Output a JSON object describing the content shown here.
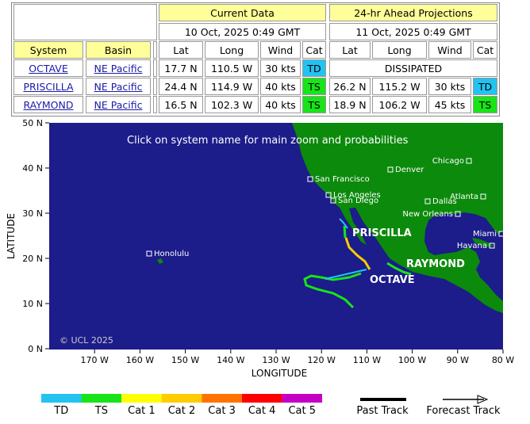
{
  "table": {
    "current_title": "Current Data",
    "ahead_title": "24-hr Ahead Projections",
    "current_time": "10 Oct, 2025 0:49 GMT",
    "ahead_time": "11 Oct, 2025 0:49 GMT",
    "columns": [
      "System",
      "Basin",
      "Lat",
      "Long",
      "Wind",
      "Cat",
      "Lat",
      "Long",
      "Wind",
      "Cat"
    ],
    "rows": [
      [
        "OCTAVE",
        "NE Pacific",
        "17.7 N",
        "110.5 W",
        "30 kts",
        "TD",
        "DISSIPATED"
      ],
      [
        "PRISCILLA",
        "NE Pacific",
        "24.4 N",
        "114.9 W",
        "40 kts",
        "TS",
        "26.2 N",
        "115.2 W",
        "30 kts",
        "TD"
      ],
      [
        "RAYMOND",
        "NE Pacific",
        "16.5 N",
        "102.3 W",
        "40 kts",
        "TS",
        "18.9 N",
        "106.2 W",
        "45 kts",
        "TS"
      ]
    ]
  },
  "map": {
    "note": "Click on system name for main zoom and probabilities",
    "copyright": "© UCL 2025",
    "xlabel": "LONGITUDE",
    "ylabel": "LATITUDE",
    "yticks": [
      "50 N",
      "40 N",
      "30 N",
      "20 N",
      "10 N",
      "0 N"
    ],
    "xticks": [
      "170 W",
      "160 W",
      "150 W",
      "140 W",
      "130 W",
      "120 W",
      "110 W",
      "100 W",
      "90 W",
      "80 W"
    ],
    "cities": [
      "San Francisco",
      "Denver",
      "Chicago",
      "Los Angeles",
      "San Diego",
      "Atlanta",
      "Dallas",
      "New Orleans",
      "Miami",
      "Havana",
      "Honolulu"
    ],
    "storms": [
      "PRISCILLA",
      "RAYMOND",
      "OCTAVE"
    ]
  },
  "legend": {
    "categories": [
      {
        "label": "TD",
        "color": "#22c3f0"
      },
      {
        "label": "TS",
        "color": "#18e418"
      },
      {
        "label": "Cat 1",
        "color": "#ffff00"
      },
      {
        "label": "Cat 2",
        "color": "#ffcc00"
      },
      {
        "label": "Cat 3",
        "color": "#ff7300"
      },
      {
        "label": "Cat 4",
        "color": "#ff0000"
      },
      {
        "label": "Cat 5",
        "color": "#c400c4"
      }
    ],
    "past": "Past Track",
    "forecast": "Forecast Track"
  }
}
